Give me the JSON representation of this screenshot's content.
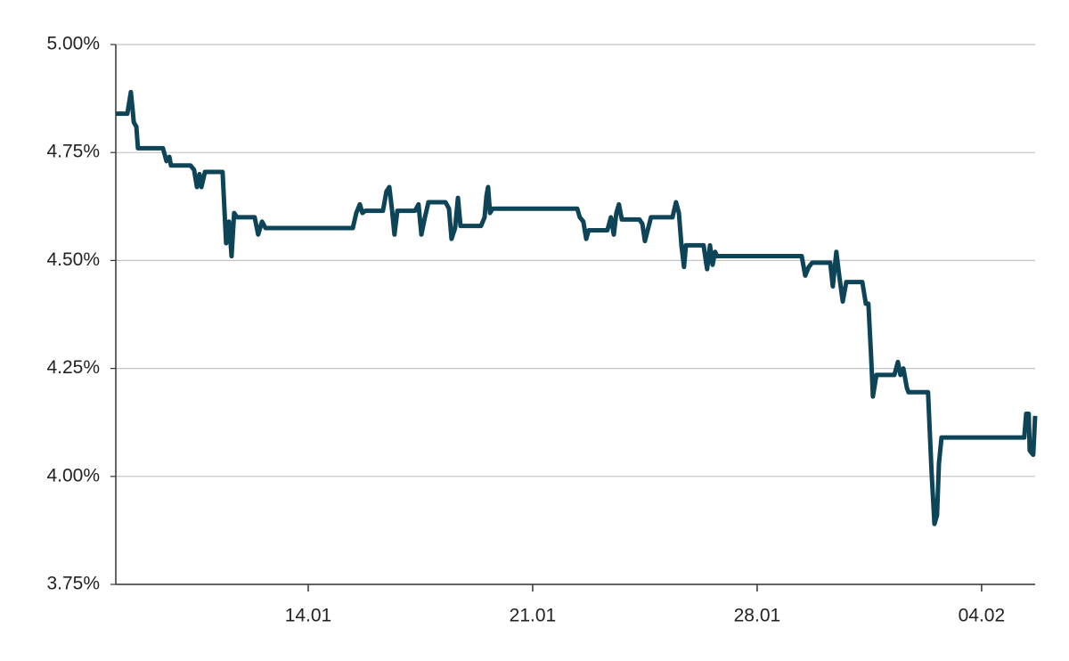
{
  "chart_data": {
    "type": "line",
    "x": [
      8.0,
      8.36,
      8.47,
      8.53,
      8.56,
      8.64,
      8.69,
      9.47,
      9.58,
      9.67,
      9.72,
      10.33,
      10.44,
      10.53,
      10.61,
      10.67,
      10.78,
      11.33,
      11.44,
      11.53,
      11.61,
      11.69,
      11.78,
      12.33,
      12.44,
      12.56,
      12.67,
      15.39,
      15.5,
      15.61,
      15.69,
      15.78,
      16.33,
      16.44,
      16.53,
      16.61,
      16.69,
      16.78,
      17.33,
      17.44,
      17.53,
      17.64,
      17.75,
      18.28,
      18.39,
      18.47,
      18.58,
      18.67,
      18.75,
      19.39,
      19.5,
      19.56,
      19.61,
      19.67,
      19.75,
      22.39,
      22.47,
      22.58,
      22.67,
      22.75,
      23.33,
      23.44,
      23.53,
      23.61,
      23.69,
      23.78,
      24.33,
      24.42,
      24.5,
      24.69,
      25.36,
      25.47,
      25.56,
      25.64,
      25.72,
      25.78,
      26.33,
      26.44,
      26.53,
      26.61,
      26.69,
      26.75,
      29.39,
      29.5,
      29.61,
      29.72,
      30.28,
      30.36,
      30.47,
      30.56,
      30.67,
      30.78,
      31.28,
      31.39,
      31.47,
      31.56,
      31.61,
      31.72,
      32.28,
      32.39,
      32.47,
      32.56,
      32.67,
      32.72,
      33.33,
      33.44,
      33.53,
      33.61,
      33.67,
      33.75,
      36.33,
      36.39,
      36.47,
      36.5,
      36.61,
      36.67
    ],
    "series": [
      {
        "color": "#0d4457",
        "values": [
          4.84,
          4.84,
          4.89,
          4.845,
          4.82,
          4.81,
          4.76,
          4.76,
          4.73,
          4.74,
          4.72,
          4.72,
          4.71,
          4.67,
          4.7,
          4.67,
          4.705,
          4.705,
          4.54,
          4.59,
          4.51,
          4.61,
          4.6,
          4.6,
          4.56,
          4.59,
          4.575,
          4.575,
          4.61,
          4.63,
          4.61,
          4.615,
          4.615,
          4.66,
          4.67,
          4.62,
          4.56,
          4.615,
          4.615,
          4.63,
          4.56,
          4.6,
          4.635,
          4.635,
          4.62,
          4.55,
          4.575,
          4.645,
          4.58,
          4.58,
          4.6,
          4.65,
          4.67,
          4.61,
          4.62,
          4.62,
          4.6,
          4.59,
          4.55,
          4.57,
          4.57,
          4.6,
          4.56,
          4.61,
          4.63,
          4.595,
          4.595,
          4.585,
          4.545,
          4.6,
          4.6,
          4.635,
          4.61,
          4.535,
          4.485,
          4.535,
          4.535,
          4.48,
          4.535,
          4.49,
          4.52,
          4.51,
          4.51,
          4.465,
          4.485,
          4.495,
          4.495,
          4.44,
          4.52,
          4.465,
          4.405,
          4.45,
          4.45,
          4.4,
          4.4,
          4.27,
          4.185,
          4.235,
          4.235,
          4.265,
          4.235,
          4.25,
          4.205,
          4.195,
          4.195,
          4.01,
          3.89,
          3.91,
          4.03,
          4.09,
          4.09,
          4.145,
          4.145,
          4.06,
          4.05,
          4.14
        ]
      }
    ],
    "xlim": [
      8,
      36.67
    ],
    "xticks": [
      {
        "value": 14,
        "label": "14.01"
      },
      {
        "value": 21,
        "label": "21.01"
      },
      {
        "value": 28,
        "label": "28.01"
      },
      {
        "value": 35,
        "label": "04.02"
      }
    ],
    "ylim": [
      3.75,
      5
    ],
    "yticks": [
      {
        "value": 3.75,
        "label": "3.75%"
      },
      {
        "value": 4,
        "label": "4.00%"
      },
      {
        "value": 4.25,
        "label": "4.25%"
      },
      {
        "value": 4.5,
        "label": "4.50%"
      },
      {
        "value": 4.75,
        "label": "4.75%"
      },
      {
        "value": 5,
        "label": "5.00%"
      }
    ],
    "grid": true
  }
}
